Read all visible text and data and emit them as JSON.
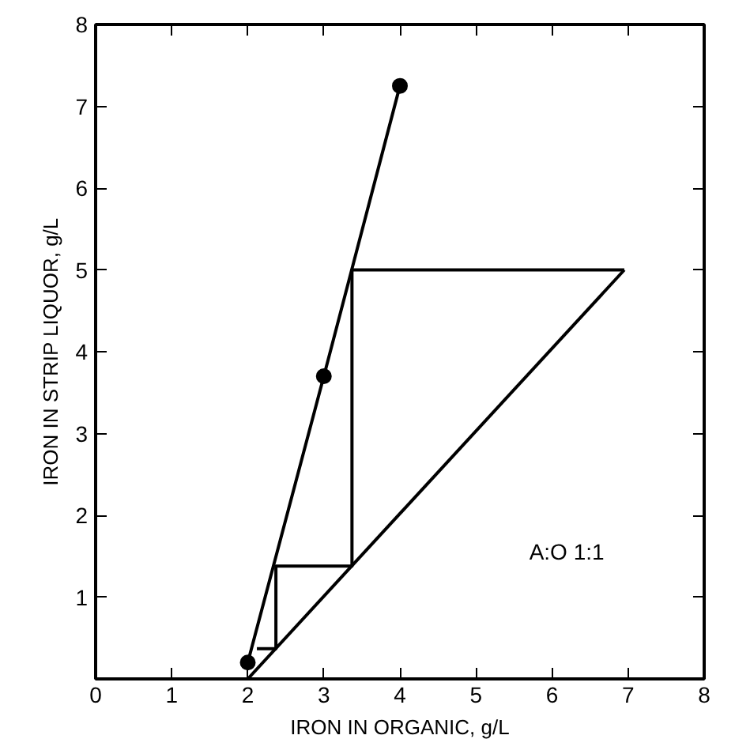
{
  "chart_data": {
    "type": "line",
    "xlabel": "IRON IN ORGANIC, g/L",
    "ylabel": "IRON IN STRIP LIQUOR, g/L",
    "xlim": [
      0,
      8
    ],
    "ylim": [
      0,
      8
    ],
    "xticks": [
      0,
      1,
      2,
      3,
      4,
      5,
      6,
      7,
      8
    ],
    "yticks": [
      {
        "value": 0,
        "label": null
      },
      1,
      2,
      3,
      4,
      5,
      6,
      7,
      8
    ],
    "grid": false,
    "line_style": "solid",
    "series": [
      {
        "color": "#000000",
        "marker": "circle",
        "x": [
          2,
          3,
          4
        ],
        "values": [
          0.2,
          3.7,
          7.25
        ]
      },
      {
        "color": "#000000",
        "marker": "none",
        "x": [
          2,
          6.95
        ],
        "values": [
          0,
          5
        ]
      },
      {
        "color": "#000000",
        "marker": "none",
        "x": [
          6.95,
          3.37,
          3.37,
          2.37,
          2.37,
          2.12
        ],
        "values": [
          5,
          5,
          1.38,
          1.38,
          0.37,
          0.37
        ]
      }
    ],
    "annotations": [
      "A:O 1:1"
    ]
  }
}
